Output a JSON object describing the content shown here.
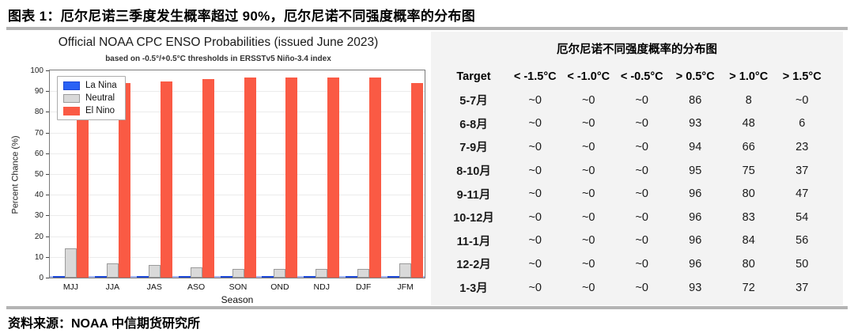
{
  "page": {
    "figure_title": "图表 1：厄尔尼诺三季度发生概率超过 90%，厄尔尼诺不同强度概率的分布图",
    "source": "资料来源：NOAA  中信期货研究所"
  },
  "chart_data": {
    "type": "bar",
    "title": "Official NOAA CPC ENSO Probabilities (issued June 2023)",
    "subtitle": "based on -0.5°/+0.5°C thresholds in ERSSTv5 Niño-3.4 index",
    "xlabel": "Season",
    "ylabel": "Percent Chance (%)",
    "ylim": [
      0,
      100
    ],
    "yticks": [
      0,
      10,
      20,
      30,
      40,
      50,
      60,
      70,
      80,
      90,
      100
    ],
    "grid": true,
    "legend_position": "upper left",
    "categories": [
      "MJJ",
      "JJA",
      "JAS",
      "ASO",
      "SON",
      "OND",
      "NDJ",
      "DJF",
      "JFM"
    ],
    "series": [
      {
        "name": "La Nina",
        "color": "#2A62F5",
        "edge": "#1C48D8",
        "values": [
          0.5,
          0.5,
          0.5,
          0.5,
          0.5,
          0.5,
          0.5,
          0.5,
          0.5
        ]
      },
      {
        "name": "Neutral",
        "color": "#D9D9D9",
        "edge": "#9B9B9B",
        "values": [
          14,
          7,
          6,
          5,
          4,
          4,
          4,
          4,
          7
        ]
      },
      {
        "name": "El Nino",
        "color": "#FA5A44",
        "edge": "#FA5A44",
        "values": [
          86,
          93,
          94,
          95,
          96,
          96,
          96,
          96,
          93
        ]
      }
    ]
  },
  "table": {
    "title": "厄尔尼诺不同强度概率的分布图",
    "headers": [
      "Target",
      "< -1.5°C",
      "< -1.0°C",
      "< -0.5°C",
      "> 0.5°C",
      "> 1.0°C",
      "> 1.5°C"
    ],
    "rows": [
      {
        "target": "5-7月",
        "values": [
          "~0",
          "~0",
          "~0",
          "86",
          "8",
          "~0"
        ]
      },
      {
        "target": "6-8月",
        "values": [
          "~0",
          "~0",
          "~0",
          "93",
          "48",
          "6"
        ]
      },
      {
        "target": "7-9月",
        "values": [
          "~0",
          "~0",
          "~0",
          "94",
          "66",
          "23"
        ]
      },
      {
        "target": "8-10月",
        "values": [
          "~0",
          "~0",
          "~0",
          "95",
          "75",
          "37"
        ]
      },
      {
        "target": "9-11月",
        "values": [
          "~0",
          "~0",
          "~0",
          "96",
          "80",
          "47"
        ]
      },
      {
        "target": "10-12月",
        "values": [
          "~0",
          "~0",
          "~0",
          "96",
          "83",
          "54"
        ]
      },
      {
        "target": "11-1月",
        "values": [
          "~0",
          "~0",
          "~0",
          "96",
          "84",
          "56"
        ]
      },
      {
        "target": "12-2月",
        "values": [
          "~0",
          "~0",
          "~0",
          "96",
          "80",
          "50"
        ]
      },
      {
        "target": "1-3月",
        "values": [
          "~0",
          "~0",
          "~0",
          "93",
          "72",
          "37"
        ]
      }
    ]
  }
}
